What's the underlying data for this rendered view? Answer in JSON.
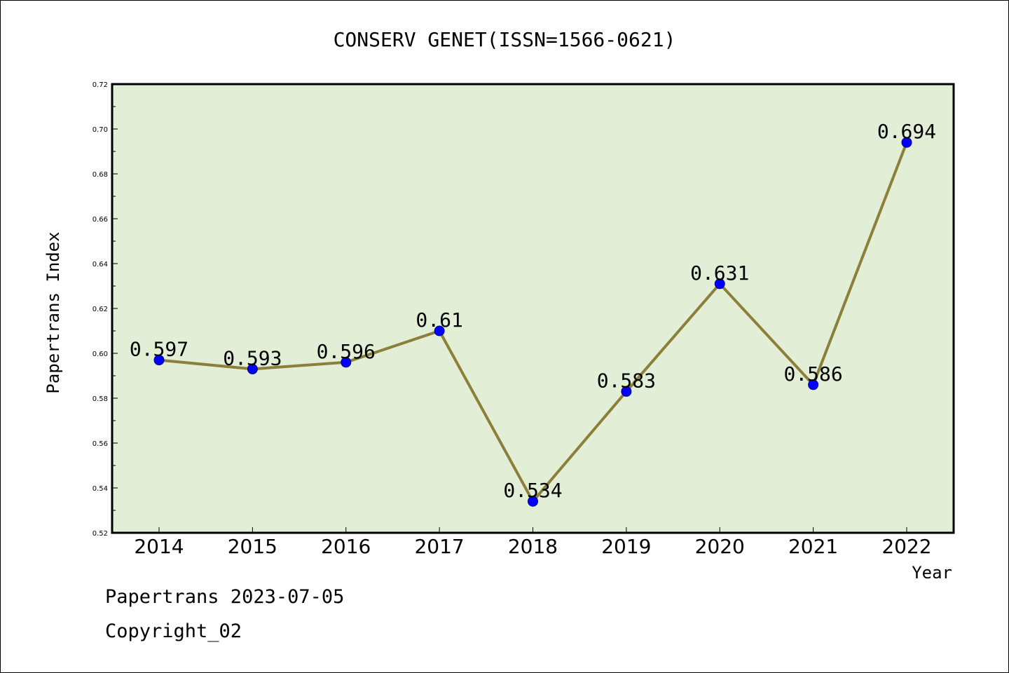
{
  "chart_data": {
    "type": "line",
    "title": "CONSERV GENET(ISSN=1566-0621)",
    "xlabel": "Year",
    "ylabel": "Papertrans Index",
    "categories": [
      "2014",
      "2015",
      "2016",
      "2017",
      "2018",
      "2019",
      "2020",
      "2021",
      "2022"
    ],
    "series": [
      {
        "values": [
          0.597,
          0.593,
          0.596,
          0.61,
          0.534,
          0.583,
          0.631,
          0.586,
          0.694
        ]
      }
    ],
    "data_labels": [
      "0.597",
      "0.593",
      "0.596",
      "0.61",
      "0.534",
      "0.583",
      "0.631",
      "0.586",
      "0.694"
    ],
    "ylim": [
      0.52,
      0.72
    ],
    "yticks": [
      "0.52",
      "0.54",
      "0.56",
      "0.58",
      "0.60",
      "0.62",
      "0.64",
      "0.66",
      "0.68",
      "0.70",
      "0.72"
    ],
    "grid": false,
    "colors": {
      "plot_background": "#e2efd6",
      "line": "#8b7f3a",
      "marker": "#0000ff"
    }
  },
  "footer": {
    "date": "Papertrans 2023-07-05",
    "copyright": "Copyright_02"
  }
}
